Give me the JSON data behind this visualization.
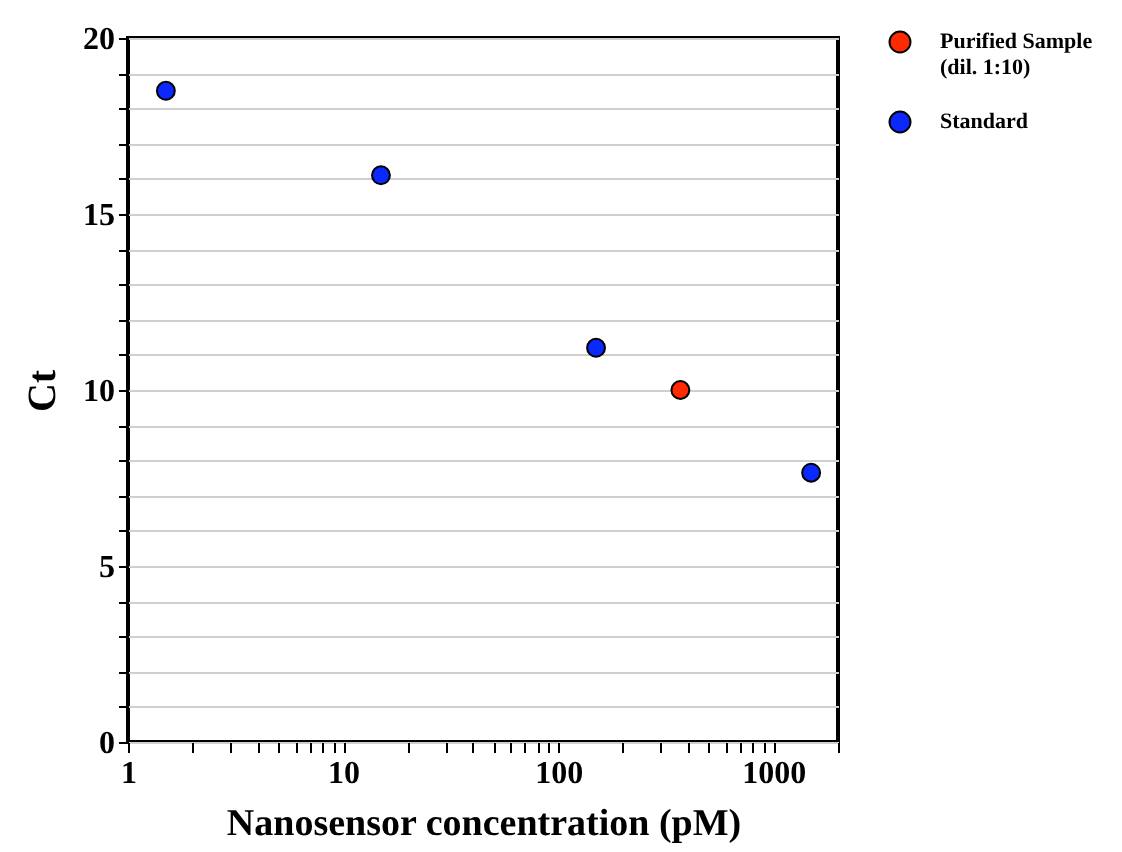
{
  "chart_data": {
    "type": "scatter",
    "xlabel": "Nanosensor concentration (pM)",
    "ylabel": "Ct",
    "log": "x",
    "xlim": [
      1,
      2000
    ],
    "ylim": [
      0,
      20
    ],
    "xticks": [
      1,
      {
        "value": 2,
        "label": null
      },
      {
        "value": 3,
        "label": null
      },
      {
        "value": 4,
        "label": null
      },
      {
        "value": 5,
        "label": null
      },
      {
        "value": 6,
        "label": null
      },
      {
        "value": 7,
        "label": null
      },
      {
        "value": 8,
        "label": null
      },
      {
        "value": 9,
        "label": null
      },
      10,
      {
        "value": 20,
        "label": null
      },
      {
        "value": 30,
        "label": null
      },
      {
        "value": 40,
        "label": null
      },
      {
        "value": 50,
        "label": null
      },
      {
        "value": 60,
        "label": null
      },
      {
        "value": 70,
        "label": null
      },
      {
        "value": 80,
        "label": null
      },
      {
        "value": 90,
        "label": null
      },
      100,
      {
        "value": 200,
        "label": null
      },
      {
        "value": 300,
        "label": null
      },
      {
        "value": 400,
        "label": null
      },
      {
        "value": 500,
        "label": null
      },
      {
        "value": 600,
        "label": null
      },
      {
        "value": 700,
        "label": null
      },
      {
        "value": 800,
        "label": null
      },
      {
        "value": 900,
        "label": null
      },
      1000,
      {
        "value": 2000,
        "label": null
      }
    ],
    "yticks": [
      0,
      {
        "value": 1,
        "label": null
      },
      {
        "value": 2,
        "label": null
      },
      {
        "value": 3,
        "label": null
      },
      {
        "value": 4,
        "label": null
      },
      5,
      {
        "value": 6,
        "label": null
      },
      {
        "value": 7,
        "label": null
      },
      {
        "value": 8,
        "label": null
      },
      {
        "value": 9,
        "label": null
      },
      10,
      {
        "value": 11,
        "label": null
      },
      {
        "value": 12,
        "label": null
      },
      {
        "value": 13,
        "label": null
      },
      {
        "value": 14,
        "label": null
      },
      15,
      {
        "value": 16,
        "label": null
      },
      {
        "value": 17,
        "label": null
      },
      {
        "value": 18,
        "label": null
      },
      {
        "value": 19,
        "label": null
      },
      20
    ],
    "grid": "y",
    "legend": "top right",
    "marker": "circle",
    "series": [
      {
        "name": "Purified Sample (dil. 1:10)",
        "color": "#ff2a00",
        "x": [
          370
        ],
        "values": [
          10.0
        ]
      },
      {
        "name": "Standard",
        "color": "#0a28ff",
        "x": [
          1.5,
          15,
          150,
          1500
        ],
        "values": [
          18.5,
          16.1,
          11.2,
          7.65
        ]
      }
    ]
  }
}
